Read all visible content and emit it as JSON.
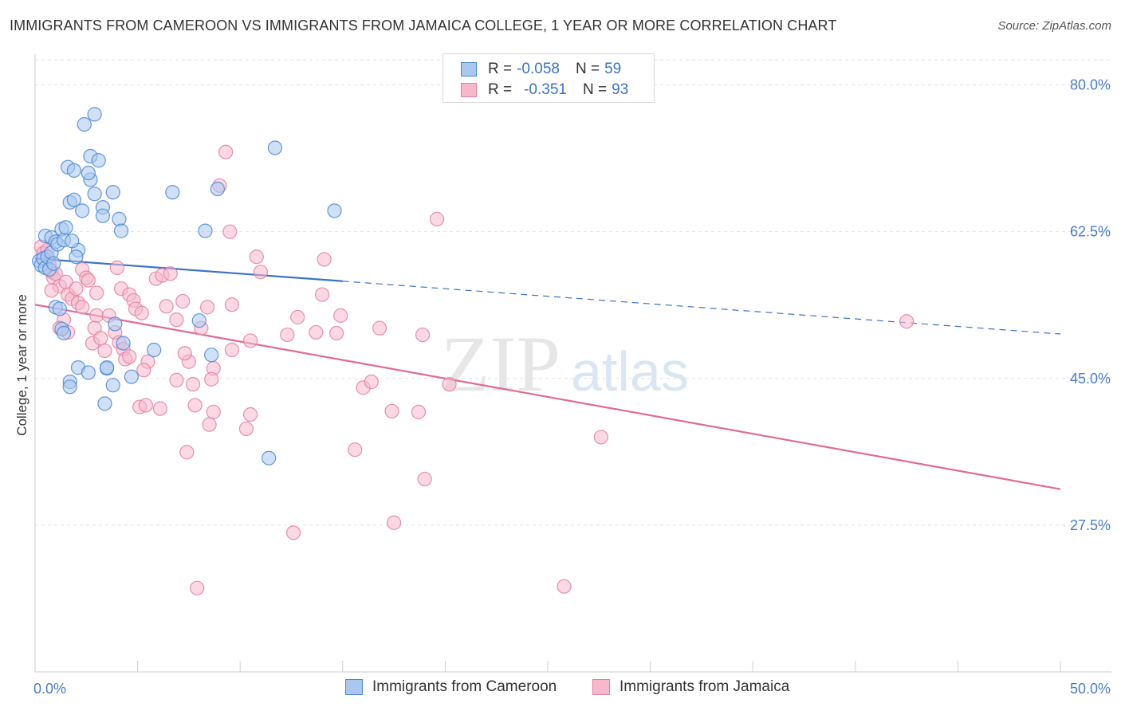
{
  "title": "IMMIGRANTS FROM CAMEROON VS IMMIGRANTS FROM JAMAICA COLLEGE, 1 YEAR OR MORE CORRELATION CHART",
  "source": "Source: ZipAtlas.com",
  "watermark": {
    "zip": "ZIP",
    "atlas": "atlas"
  },
  "colors": {
    "cameroon_fill": "#a9c8f0",
    "cameroon_stroke": "#4a86d4",
    "cameroon_line": "#3b73c4",
    "jamaica_fill": "#f7b8cc",
    "jamaica_stroke": "#e27fa0",
    "jamaica_line": "#e06a96",
    "grid": "#e2e2e2",
    "axis_text": "#4a7cc9"
  },
  "stats": {
    "cameroon": {
      "r_label": "R = ",
      "r_value": "-0.058",
      "n_label": "N = ",
      "n_value": "59"
    },
    "jamaica": {
      "r_label": "R = ",
      "r_value": "-0.351",
      "n_label": "N = ",
      "n_value": "93"
    }
  },
  "legend": {
    "cameroon": "Immigrants from Cameroon",
    "jamaica": "Immigrants from Jamaica"
  },
  "chart_data": {
    "type": "scatter",
    "title": "IMMIGRANTS FROM CAMEROON VS IMMIGRANTS FROM JAMAICA COLLEGE, 1 YEAR OR MORE CORRELATION CHART",
    "xlabel": "",
    "ylabel": "College, 1 year or more",
    "xlim": [
      0,
      50
    ],
    "ylim": [
      10,
      83
    ],
    "x_tick_labels": [
      {
        "value": 0,
        "label": "0.0%"
      },
      {
        "value": 50,
        "label": "50.0%"
      }
    ],
    "y_ticks": [
      {
        "value": 80,
        "label": "80.0%"
      },
      {
        "value": 62.5,
        "label": "62.5%"
      },
      {
        "value": 45,
        "label": "45.0%"
      },
      {
        "value": 27.5,
        "label": "27.5%"
      }
    ],
    "x_minor_ticks": [
      0,
      5,
      10,
      15,
      20,
      25,
      30,
      35,
      40,
      45,
      50
    ],
    "grid": true,
    "series": [
      {
        "name": "Immigrants from Cameroon",
        "points": [
          [
            0.2,
            59.0
          ],
          [
            0.3,
            58.5
          ],
          [
            0.4,
            59.3
          ],
          [
            0.5,
            58.2
          ],
          [
            0.6,
            59.5
          ],
          [
            0.7,
            58.0
          ],
          [
            0.8,
            60.0
          ],
          [
            0.9,
            58.7
          ],
          [
            0.5,
            62.0
          ],
          [
            0.8,
            61.8
          ],
          [
            1.0,
            61.3
          ],
          [
            1.3,
            62.8
          ],
          [
            1.1,
            61.0
          ],
          [
            1.4,
            61.5
          ],
          [
            1.5,
            63.0
          ],
          [
            1.7,
            66.0
          ],
          [
            1.9,
            66.3
          ],
          [
            1.6,
            70.2
          ],
          [
            1.9,
            69.8
          ],
          [
            2.3,
            65.0
          ],
          [
            2.7,
            68.7
          ],
          [
            2.7,
            71.5
          ],
          [
            2.6,
            69.5
          ],
          [
            2.9,
            67.0
          ],
          [
            2.4,
            75.3
          ],
          [
            2.9,
            76.5
          ],
          [
            3.1,
            71.0
          ],
          [
            3.3,
            65.4
          ],
          [
            3.3,
            64.4
          ],
          [
            3.8,
            67.2
          ],
          [
            4.1,
            64.0
          ],
          [
            4.2,
            62.6
          ],
          [
            2.1,
            60.3
          ],
          [
            2.0,
            59.5
          ],
          [
            1.0,
            53.5
          ],
          [
            1.2,
            53.3
          ],
          [
            1.3,
            50.9
          ],
          [
            1.4,
            50.4
          ],
          [
            1.7,
            44.6
          ],
          [
            1.7,
            44.0
          ],
          [
            2.1,
            46.3
          ],
          [
            2.6,
            45.7
          ],
          [
            3.5,
            46.2
          ],
          [
            3.5,
            46.3
          ],
          [
            3.8,
            44.2
          ],
          [
            3.9,
            51.5
          ],
          [
            4.3,
            49.2
          ],
          [
            4.7,
            45.2
          ],
          [
            5.8,
            48.4
          ],
          [
            3.4,
            42.0
          ],
          [
            6.7,
            67.2
          ],
          [
            8.3,
            62.6
          ],
          [
            8.9,
            67.6
          ],
          [
            11.7,
            72.5
          ],
          [
            14.6,
            65.0
          ],
          [
            8.0,
            51.9
          ],
          [
            8.6,
            47.8
          ],
          [
            11.4,
            35.5
          ],
          [
            1.8,
            61.4
          ]
        ]
      },
      {
        "name": "Immigrants from Jamaica",
        "points": [
          [
            0.3,
            60.7
          ],
          [
            0.4,
            59.9
          ],
          [
            0.6,
            60.3
          ],
          [
            0.7,
            58.5
          ],
          [
            0.8,
            57.7
          ],
          [
            0.9,
            57.0
          ],
          [
            1.0,
            57.5
          ],
          [
            1.2,
            56.0
          ],
          [
            0.8,
            55.5
          ],
          [
            1.5,
            56.5
          ],
          [
            1.6,
            55.0
          ],
          [
            1.8,
            54.5
          ],
          [
            2.1,
            54.0
          ],
          [
            2.3,
            53.5
          ],
          [
            1.4,
            52.0
          ],
          [
            1.2,
            51.0
          ],
          [
            1.6,
            50.5
          ],
          [
            2.0,
            55.7
          ],
          [
            2.3,
            58.0
          ],
          [
            2.5,
            57.0
          ],
          [
            2.6,
            56.7
          ],
          [
            3.0,
            55.2
          ],
          [
            3.0,
            52.5
          ],
          [
            2.9,
            51.0
          ],
          [
            2.8,
            49.2
          ],
          [
            3.2,
            49.8
          ],
          [
            3.4,
            48.3
          ],
          [
            3.6,
            52.5
          ],
          [
            3.9,
            50.5
          ],
          [
            4.1,
            49.3
          ],
          [
            4.3,
            48.5
          ],
          [
            4.2,
            55.7
          ],
          [
            4.6,
            55.0
          ],
          [
            4.8,
            54.3
          ],
          [
            4.9,
            53.3
          ],
          [
            5.2,
            52.8
          ],
          [
            5.5,
            47.0
          ],
          [
            5.3,
            46.0
          ],
          [
            4.4,
            47.3
          ],
          [
            4.6,
            47.6
          ],
          [
            4.0,
            58.2
          ],
          [
            5.9,
            56.9
          ],
          [
            6.2,
            57.3
          ],
          [
            6.6,
            57.5
          ],
          [
            6.4,
            53.6
          ],
          [
            6.9,
            52.0
          ],
          [
            7.2,
            54.2
          ],
          [
            7.5,
            47.0
          ],
          [
            7.3,
            48.0
          ],
          [
            8.1,
            51.0
          ],
          [
            6.9,
            44.8
          ],
          [
            7.7,
            44.3
          ],
          [
            8.4,
            53.5
          ],
          [
            8.7,
            46.2
          ],
          [
            8.6,
            44.9
          ],
          [
            9.6,
            48.4
          ],
          [
            9.6,
            53.8
          ],
          [
            9.5,
            62.5
          ],
          [
            10.8,
            59.5
          ],
          [
            11.0,
            57.7
          ],
          [
            10.5,
            49.5
          ],
          [
            12.3,
            50.2
          ],
          [
            12.8,
            52.3
          ],
          [
            13.7,
            50.5
          ],
          [
            14.0,
            55.0
          ],
          [
            14.1,
            59.2
          ],
          [
            14.7,
            50.4
          ],
          [
            14.9,
            52.5
          ],
          [
            16.0,
            43.9
          ],
          [
            16.4,
            44.6
          ],
          [
            16.8,
            51.0
          ],
          [
            17.4,
            41.1
          ],
          [
            18.9,
            50.2
          ],
          [
            18.7,
            41.0
          ],
          [
            19.0,
            33.0
          ],
          [
            19.6,
            64.0
          ],
          [
            20.2,
            44.3
          ],
          [
            5.1,
            41.6
          ],
          [
            6.1,
            41.4
          ],
          [
            5.4,
            41.8
          ],
          [
            7.8,
            41.8
          ],
          [
            8.7,
            41.0
          ],
          [
            8.5,
            39.5
          ],
          [
            10.5,
            40.7
          ],
          [
            10.3,
            39.0
          ],
          [
            15.6,
            36.5
          ],
          [
            7.4,
            36.2
          ],
          [
            9.3,
            72.0
          ],
          [
            9.0,
            68.0
          ],
          [
            12.6,
            26.6
          ],
          [
            7.9,
            20.0
          ],
          [
            25.8,
            20.2
          ],
          [
            27.6,
            38.0
          ],
          [
            42.5,
            51.8
          ],
          [
            17.5,
            27.8
          ]
        ]
      }
    ],
    "trendlines": [
      {
        "series": "Immigrants from Cameroon",
        "solid": [
          [
            0,
            59.3
          ],
          [
            15,
            56.6
          ]
        ],
        "dashed": [
          [
            15,
            56.6
          ],
          [
            50,
            50.3
          ]
        ]
      },
      {
        "series": "Immigrants from Jamaica",
        "solid": [
          [
            0,
            53.8
          ],
          [
            50,
            31.8
          ]
        ]
      }
    ]
  }
}
